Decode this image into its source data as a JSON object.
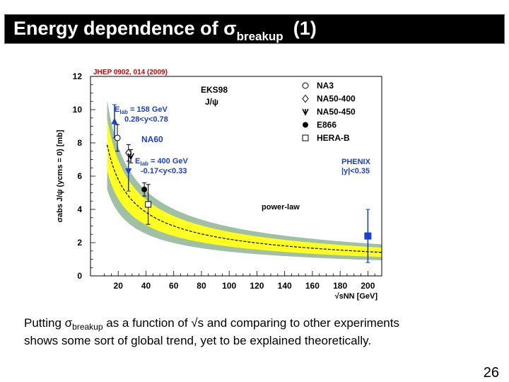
{
  "slide": {
    "title_main": "Energy dependence of ",
    "title_sigma": "σ",
    "title_sub": "breakup",
    "title_num": "(1)",
    "caption_l1_a": "Putting ",
    "caption_l1_sigma": "σ",
    "caption_l1_sub": "breakup",
    "caption_l1_b": " as a function of √s and comparing to other experiments",
    "caption_l2": "shows some sort of global trend, yet to be explained theoretically.",
    "page_number": "26"
  },
  "colors": {
    "band_outer": "#9fc0a4",
    "band_inner": "#ffff20",
    "blue": "#1b3fcf",
    "fit_line": "#000000"
  },
  "chart_data": {
    "type": "scatter",
    "reference": "JHEP 0902, 014 (2009)",
    "xlim": [
      0,
      210
    ],
    "ylim": [
      0,
      12
    ],
    "x_ticks": [
      20,
      40,
      60,
      80,
      100,
      120,
      140,
      160,
      180,
      200
    ],
    "y_ticks": [
      0,
      2,
      4,
      6,
      8,
      10,
      12
    ],
    "ylabel": "σabs J/ψ (ycms = 0) [mb]",
    "xlabel": "√sNN [GeV]",
    "model_label": "EKS98",
    "particle_label": "J/ψ",
    "band_label": "power-law",
    "power_law": {
      "a": 35,
      "b": -0.6
    },
    "legend": [
      {
        "label": "NA3",
        "marker": "open-circle"
      },
      {
        "label": "NA50-400",
        "marker": "open-diamond"
      },
      {
        "label": "NA50-450",
        "marker": "star"
      },
      {
        "label": "E866",
        "marker": "filled-circle"
      },
      {
        "label": "HERA-B",
        "marker": "open-square"
      }
    ],
    "annotations": {
      "e158_line1": "E",
      "e158_line1_sub": "lab",
      "e158_line1_rest": " = 158 GeV",
      "e158_line2": "0.28<y<0.78",
      "na60": "NA60",
      "e400_line1": "E",
      "e400_line1_sub": "lab",
      "e400_line1_rest": " = 400 GeV",
      "e400_line2": "-0.17<y<0.33",
      "phenix_line1": "PHENIX",
      "phenix_line2": "|y|<0.35"
    },
    "series": [
      {
        "name": "NA60 158 GeV",
        "marker": "blue-triangle-up",
        "x": 17.3,
        "y": 9.3,
        "err": 1.0
      },
      {
        "name": "NA60 400 GeV",
        "marker": "blue-triangle-down",
        "x": 27.4,
        "y": 6.3,
        "err": 1.2
      },
      {
        "name": "NA3",
        "marker": "open-circle",
        "x": 19.4,
        "y": 8.3,
        "err": 0.8
      },
      {
        "name": "NA50-400",
        "marker": "open-diamond",
        "x": 27.4,
        "y": 7.4,
        "err": 0.5
      },
      {
        "name": "NA50-450",
        "marker": "star",
        "x": 29.1,
        "y": 7.2,
        "err": 0.4
      },
      {
        "name": "E866",
        "marker": "filled-circle",
        "x": 38.8,
        "y": 5.2,
        "err": 0.4
      },
      {
        "name": "HERA-B",
        "marker": "open-square",
        "x": 41.6,
        "y": 4.3,
        "err": 1.2
      },
      {
        "name": "PHENIX",
        "marker": "blue-square",
        "x": 200,
        "y": 2.4,
        "err": 1.6
      }
    ]
  }
}
